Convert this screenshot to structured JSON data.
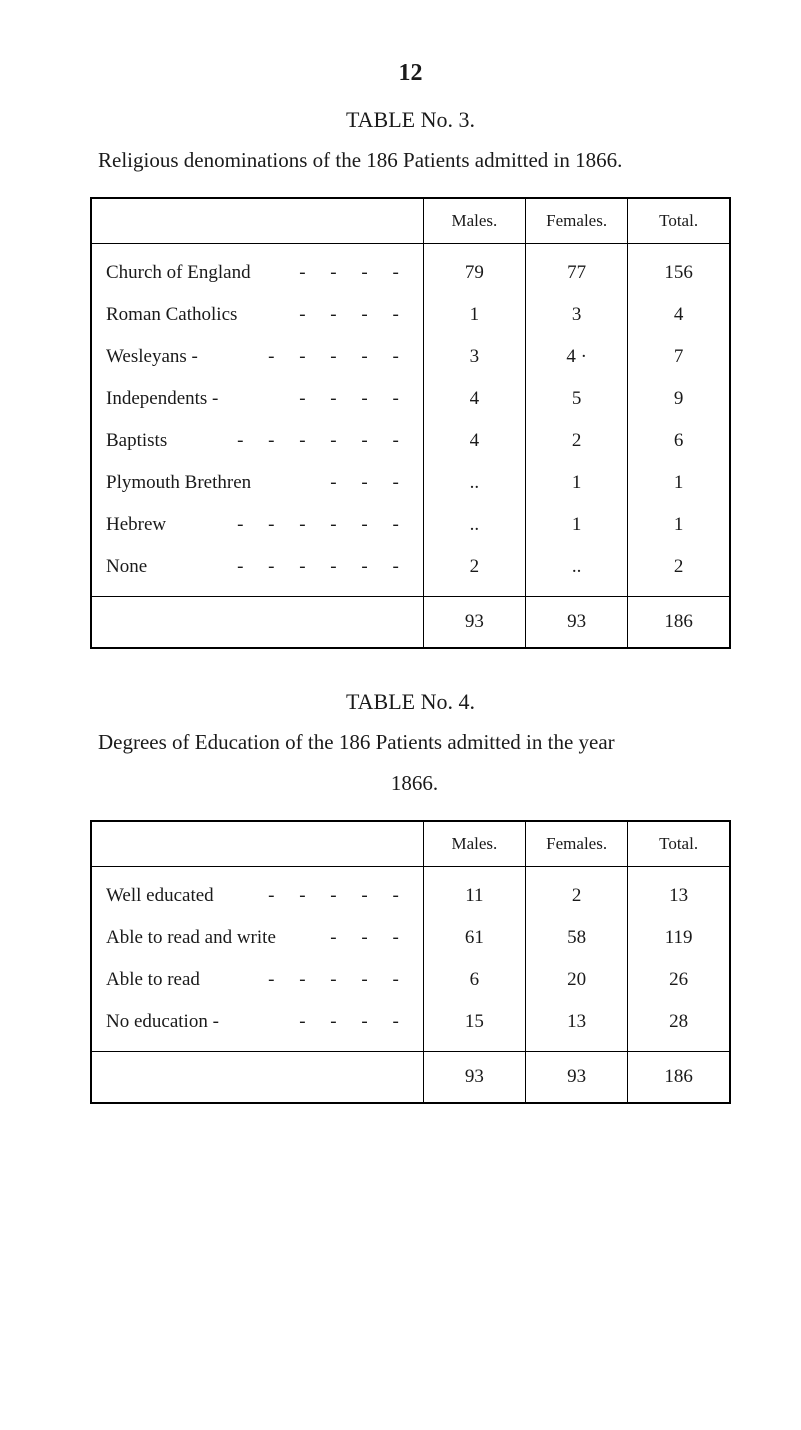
{
  "page_number": "12",
  "table1": {
    "label": "TABLE No. 3.",
    "caption": "Religious denominations of the 186 Patients admitted in 1866.",
    "headers": [
      "",
      "Males.",
      "Females.",
      "Total."
    ],
    "rows": [
      {
        "label": "Church of England",
        "dashes": "- - - -",
        "males": "79",
        "females": "77",
        "total": "156"
      },
      {
        "label": "Roman Catholics",
        "dashes": "- - - -",
        "males": "1",
        "females": "3",
        "total": "4"
      },
      {
        "label": "Wesleyans -",
        "dashes": "- - - - -",
        "males": "3",
        "females": "4 ·",
        "total": "7"
      },
      {
        "label": "Independents -",
        "dashes": "- - - -",
        "males": "4",
        "females": "5",
        "total": "9"
      },
      {
        "label": "Baptists",
        "dashes": "- - - - - -",
        "males": "4",
        "females": "2",
        "total": "6"
      },
      {
        "label": "Plymouth Brethren",
        "dashes": "- - -",
        "males": "..",
        "females": "1",
        "total": "1"
      },
      {
        "label": "Hebrew",
        "dashes": "- - - - - -",
        "males": "..",
        "females": "1",
        "total": "1"
      },
      {
        "label": "None",
        "dashes": "- - - - - -",
        "males": "2",
        "females": "..",
        "total": "2"
      }
    ],
    "totals": {
      "males": "93",
      "females": "93",
      "total": "186"
    }
  },
  "table2": {
    "label": "TABLE No. 4.",
    "caption_line1": "Degrees of Education of the 186 Patients admitted in the year",
    "caption_line2": "1866.",
    "headers": [
      "",
      "Males.",
      "Females.",
      "Total."
    ],
    "rows": [
      {
        "label": "Well educated",
        "dashes": "- - - - -",
        "males": "11",
        "females": "2",
        "total": "13"
      },
      {
        "label": "Able to read and write",
        "dashes": "- - -",
        "males": "61",
        "females": "58",
        "total": "119"
      },
      {
        "label": "Able to read",
        "dashes": "- - - - -",
        "males": "6",
        "females": "20",
        "total": "26"
      },
      {
        "label": "No education -",
        "dashes": "- - - -",
        "males": "15",
        "females": "13",
        "total": "28"
      }
    ],
    "totals": {
      "males": "93",
      "females": "93",
      "total": "186"
    }
  },
  "styling": {
    "background_color": "#ffffff",
    "text_color": "#1a1a1a",
    "border_color": "#000000",
    "font_family": "Times New Roman",
    "page_number_fontsize": 24,
    "label_fontsize": 22,
    "caption_fontsize": 21,
    "header_fontsize": 17,
    "cell_fontsize": 19
  }
}
